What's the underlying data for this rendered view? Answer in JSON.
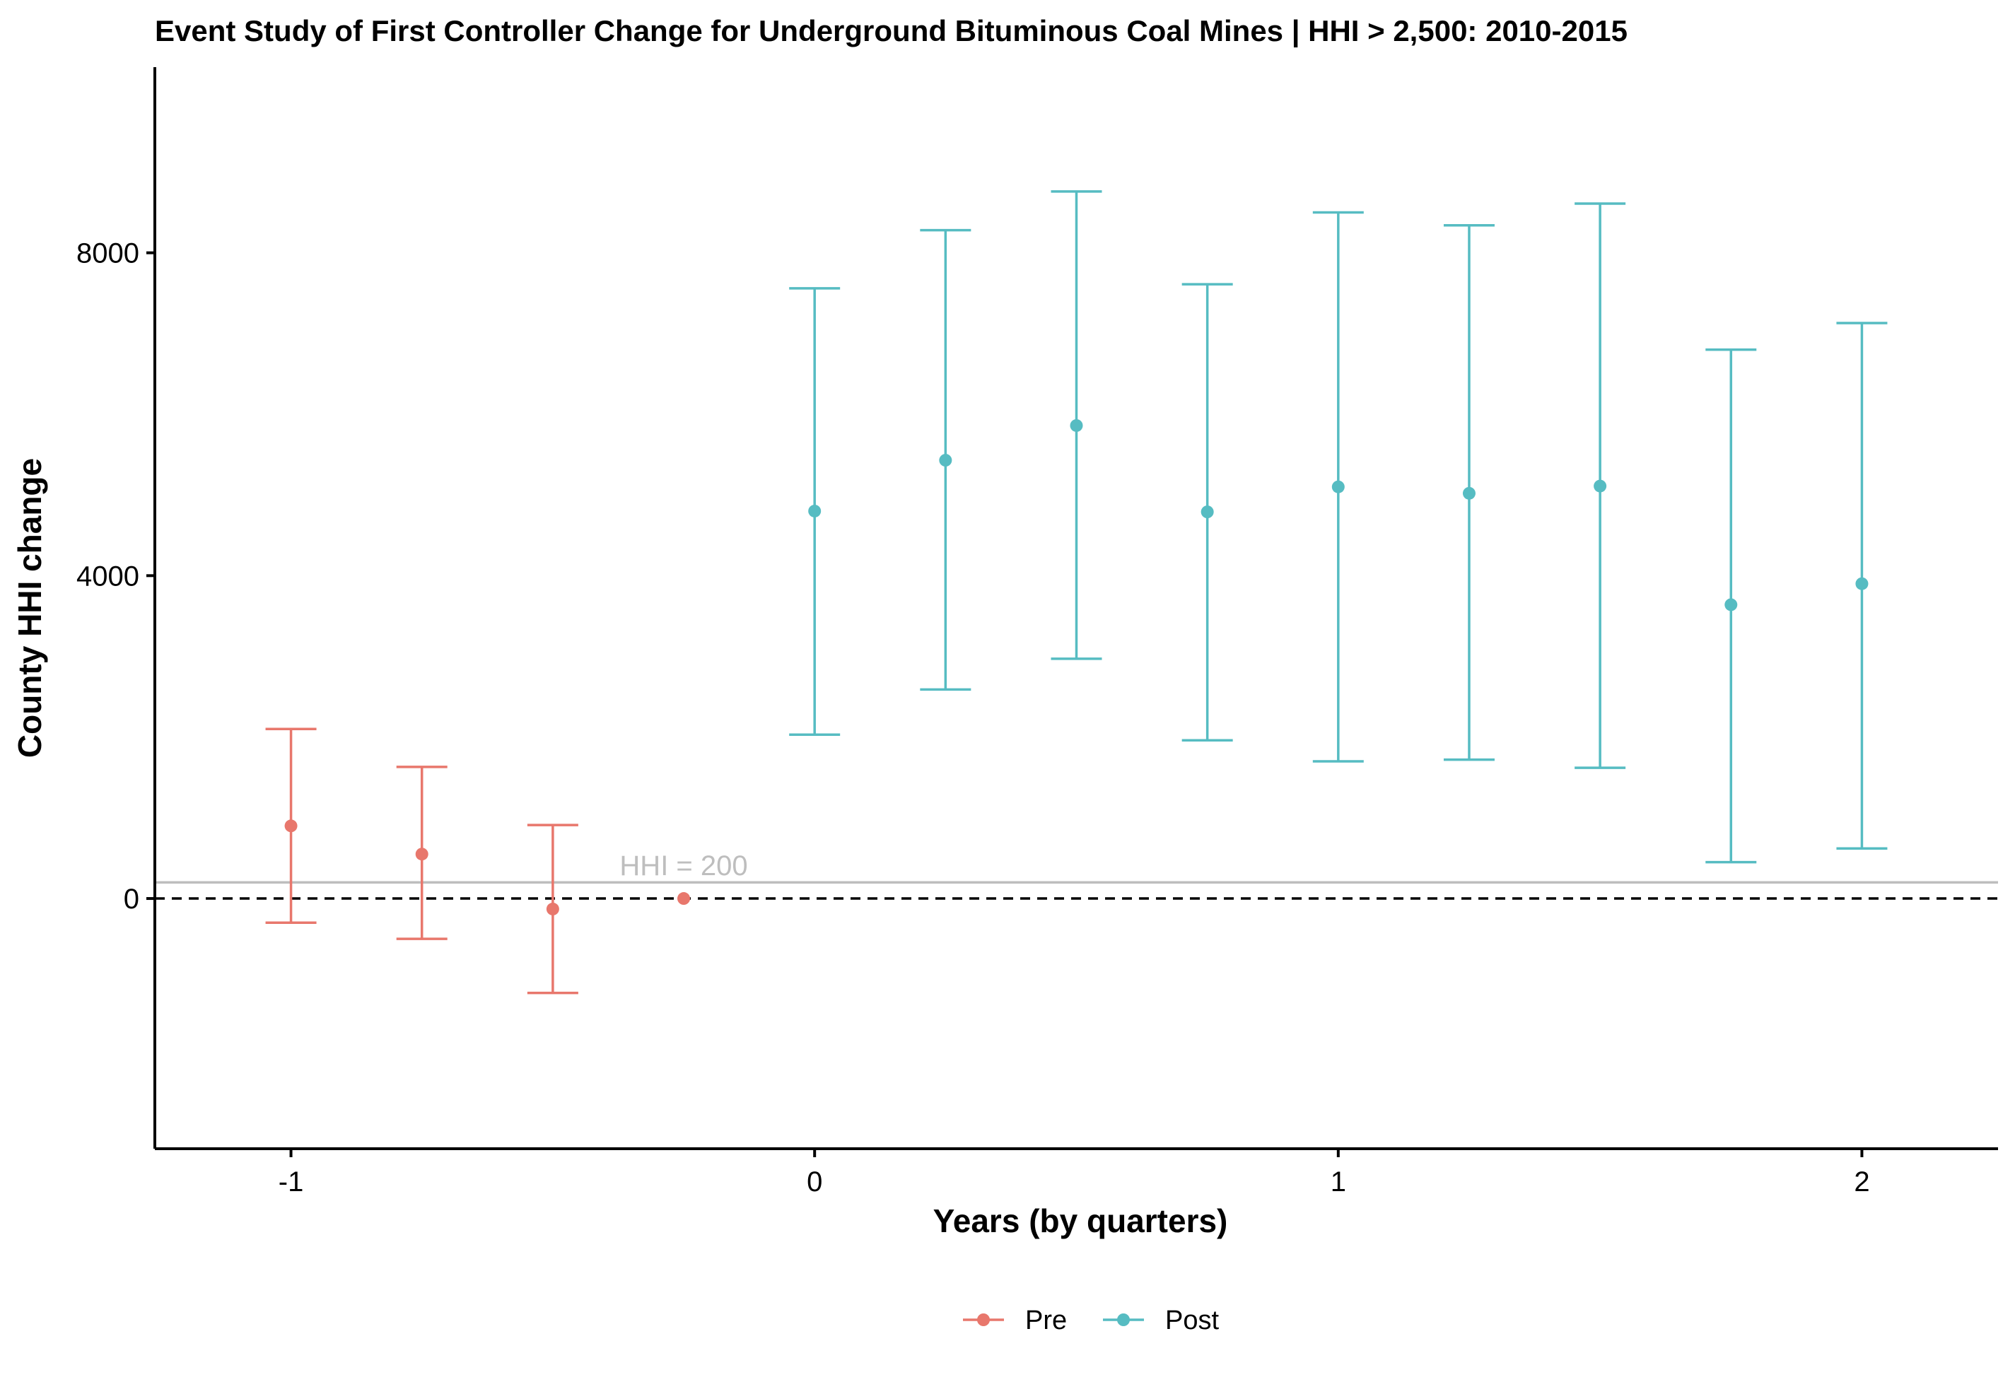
{
  "chart_data": {
    "type": "scatter",
    "subtype": "event-study-errorbar",
    "title": "Event Study of First Controller Change for Underground Bituminous Coal Mines | HHI > 2,500: 2010-2015",
    "xlabel": "Years (by quarters)",
    "ylabel": "County HHI change",
    "xlim": [
      -1.26,
      2.26
    ],
    "ylim": [
      -3100,
      10300
    ],
    "x_ticks": [
      -1,
      0,
      1,
      2
    ],
    "x_tick_labels": [
      "-1",
      "0",
      "1",
      "2"
    ],
    "y_ticks": [
      0,
      4000,
      8000
    ],
    "y_tick_labels": [
      "0",
      "4000",
      "8000"
    ],
    "grid": false,
    "legend_position": "bottom",
    "zero_line": {
      "y": 0,
      "style": "dashed",
      "color": "#000000"
    },
    "reference_line": {
      "y": 200,
      "label": "HHI = 200",
      "label_x": -0.25,
      "color": "#bebebe"
    },
    "series": [
      {
        "name": "Pre",
        "color": "#e8776c",
        "points": [
          {
            "x": -1.0,
            "y": 900,
            "lower": -300,
            "upper": 2100
          },
          {
            "x": -0.75,
            "y": 550,
            "lower": -500,
            "upper": 1630
          },
          {
            "x": -0.5,
            "y": -130,
            "lower": -1170,
            "upper": 910
          },
          {
            "x": -0.25,
            "y": 0
          }
        ]
      },
      {
        "name": "Post",
        "color": "#56bcc2",
        "points": [
          {
            "x": 0.0,
            "y": 4800,
            "lower": 2030,
            "upper": 7560
          },
          {
            "x": 0.25,
            "y": 5430,
            "lower": 2590,
            "upper": 8280
          },
          {
            "x": 0.5,
            "y": 5860,
            "lower": 2970,
            "upper": 8760
          },
          {
            "x": 0.75,
            "y": 4790,
            "lower": 1960,
            "upper": 7610
          },
          {
            "x": 1.0,
            "y": 5100,
            "lower": 1700,
            "upper": 8500
          },
          {
            "x": 1.25,
            "y": 5020,
            "lower": 1720,
            "upper": 8340
          },
          {
            "x": 1.5,
            "y": 5110,
            "lower": 1620,
            "upper": 8610
          },
          {
            "x": 1.75,
            "y": 3640,
            "lower": 450,
            "upper": 6800
          },
          {
            "x": 2.0,
            "y": 3900,
            "lower": 620,
            "upper": 7130
          }
        ]
      }
    ]
  }
}
